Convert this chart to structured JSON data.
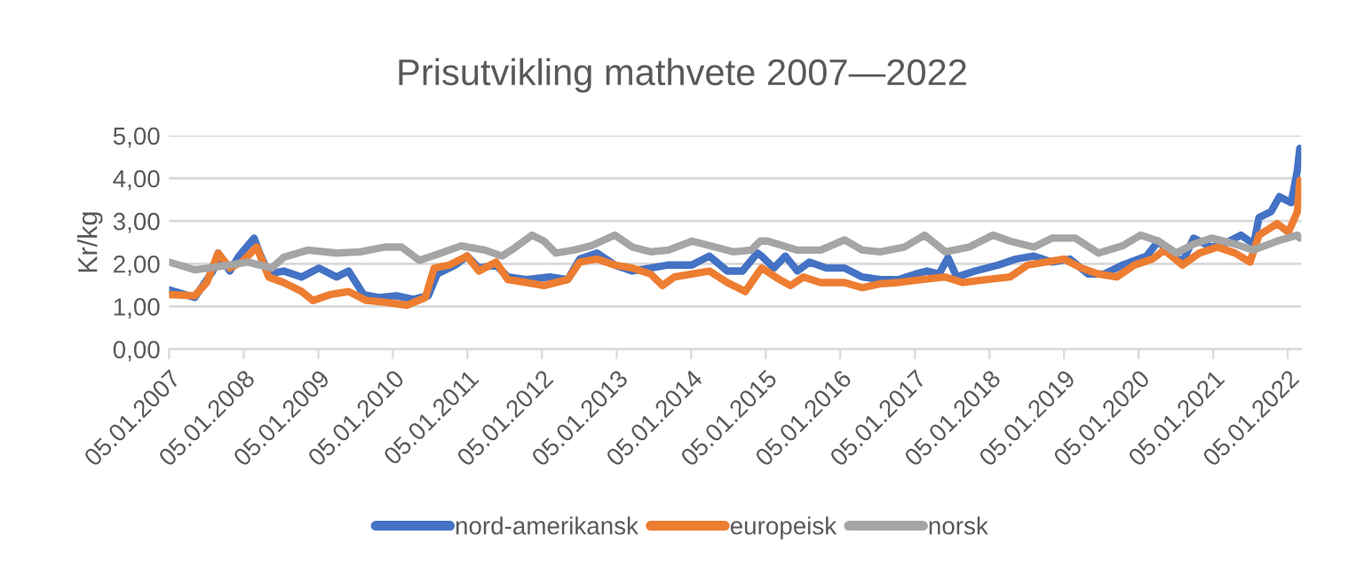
{
  "chart_data": {
    "type": "line",
    "title": "Prisutvikling mathvete 2007—2022",
    "ylabel": "Kr/kg",
    "series": [
      {
        "name": "nord-amerikansk",
        "color": "#4472c4",
        "x": [
          "2007-01-05",
          "2007-05-10",
          "2007-08-07",
          "2007-09-02",
          "2007-10-29",
          "2007-12-13",
          "2008-02-25",
          "2008-03-23",
          "2008-05-07",
          "2008-07-19",
          "2008-10-15",
          "2009-01-08",
          "2009-04-04",
          "2009-06-02",
          "2009-08-14",
          "2009-10-26",
          "2010-01-22",
          "2010-04-15",
          "2010-06-27",
          "2010-08-10",
          "2010-11-07",
          "2011-01-04",
          "2011-03-02",
          "2011-05-25",
          "2011-07-22",
          "2011-10-19",
          "2012-02-14",
          "2012-05-10",
          "2012-07-08",
          "2012-10-01",
          "2012-12-27",
          "2013-03-23",
          "2013-06-20",
          "2013-09-13",
          "2014-01-08",
          "2014-04-04",
          "2014-07-01",
          "2014-09-13",
          "2014-11-25",
          "2014-12-16",
          "2015-02-14",
          "2015-04-11",
          "2015-06-09",
          "2015-08-07",
          "2015-10-29",
          "2016-01-26",
          "2016-04-22",
          "2016-07-19",
          "2016-10-15",
          "2017-01-08",
          "2017-03-05",
          "2017-05-03",
          "2017-06-16",
          "2017-07-29",
          "2017-10-26",
          "2018-02-17",
          "2018-05-14",
          "2018-08-10",
          "2018-11-07",
          "2019-02-03",
          "2019-05-03",
          "2019-07-22",
          "2019-10-19",
          "2020-02-14",
          "2020-04-11",
          "2020-06-09",
          "2020-08-07",
          "2020-10-01",
          "2020-12-27",
          "2021-02-25",
          "2021-05-21",
          "2021-07-22",
          "2021-08-17",
          "2021-10-15",
          "2021-11-25",
          "2022-01-22",
          "2022-02-21",
          "2022-03-05"
        ],
        "values": [
          1.39,
          1.21,
          1.83,
          2.25,
          1.83,
          2.18,
          2.6,
          2.25,
          1.76,
          1.83,
          1.69,
          1.9,
          1.69,
          1.83,
          1.28,
          1.21,
          1.25,
          1.17,
          1.25,
          1.76,
          1.97,
          2.18,
          1.9,
          1.97,
          1.69,
          1.63,
          1.69,
          1.63,
          2.11,
          2.25,
          1.97,
          1.83,
          1.9,
          1.97,
          1.97,
          2.18,
          1.83,
          1.83,
          2.25,
          2.18,
          1.9,
          2.18,
          1.83,
          2.04,
          1.9,
          1.9,
          1.69,
          1.63,
          1.63,
          1.76,
          1.83,
          1.76,
          2.14,
          1.69,
          1.83,
          1.97,
          2.11,
          2.18,
          2.04,
          2.11,
          1.76,
          1.76,
          1.97,
          2.18,
          2.53,
          2.25,
          2.04,
          2.6,
          2.39,
          2.46,
          2.67,
          2.46,
          3.08,
          3.22,
          3.57,
          3.43,
          4.19,
          4.7
        ]
      },
      {
        "name": "europeisk",
        "color": "#ed7d31",
        "x": [
          "2007-01-05",
          "2007-05-10",
          "2007-07-08",
          "2007-09-02",
          "2007-10-29",
          "2007-12-27",
          "2008-03-09",
          "2008-05-07",
          "2008-07-19",
          "2008-10-15",
          "2008-12-09",
          "2009-03-05",
          "2009-06-02",
          "2009-08-28",
          "2009-11-25",
          "2010-03-16",
          "2010-06-13",
          "2010-07-26",
          "2010-10-08",
          "2011-01-04",
          "2011-03-02",
          "2011-05-25",
          "2011-07-22",
          "2011-10-19",
          "2012-01-15",
          "2012-05-10",
          "2012-07-08",
          "2012-10-01",
          "2012-12-27",
          "2013-03-23",
          "2013-06-20",
          "2013-08-17",
          "2013-10-15",
          "2014-01-08",
          "2014-04-04",
          "2014-07-01",
          "2014-09-27",
          "2014-11-25",
          "2014-12-16",
          "2015-03-13",
          "2015-05-07",
          "2015-07-08",
          "2015-10-01",
          "2016-01-26",
          "2016-04-22",
          "2016-07-19",
          "2016-10-15",
          "2017-02-07",
          "2017-06-02",
          "2017-08-28",
          "2017-12-23",
          "2018-04-15",
          "2018-07-11",
          "2018-10-08",
          "2019-01-04",
          "2019-04-01",
          "2019-06-23",
          "2019-09-20",
          "2019-12-16",
          "2020-03-13",
          "2020-05-10",
          "2020-08-07",
          "2020-10-29",
          "2021-01-26",
          "2021-04-22",
          "2021-07-04",
          "2021-08-17",
          "2021-11-14",
          "2022-01-08",
          "2022-02-21",
          "2022-03-05"
        ],
        "values": [
          1.28,
          1.25,
          1.56,
          2.25,
          1.9,
          2.04,
          2.39,
          1.69,
          1.56,
          1.35,
          1.14,
          1.28,
          1.35,
          1.14,
          1.1,
          1.03,
          1.21,
          1.9,
          1.97,
          2.18,
          1.83,
          2.04,
          1.63,
          1.56,
          1.49,
          1.63,
          2.04,
          2.11,
          1.97,
          1.9,
          1.76,
          1.49,
          1.69,
          1.76,
          1.83,
          1.56,
          1.35,
          1.76,
          1.9,
          1.63,
          1.49,
          1.69,
          1.56,
          1.56,
          1.44,
          1.53,
          1.56,
          1.63,
          1.69,
          1.56,
          1.63,
          1.69,
          1.97,
          2.04,
          2.11,
          1.9,
          1.76,
          1.69,
          1.97,
          2.11,
          2.32,
          1.97,
          2.25,
          2.39,
          2.25,
          2.04,
          2.67,
          2.94,
          2.74,
          3.22,
          3.95
        ]
      },
      {
        "name": "norsk",
        "color": "#a5a5a5",
        "x": [
          "2007-01-05",
          "2007-05-10",
          "2007-09-02",
          "2008-01-26",
          "2008-05-21",
          "2008-07-19",
          "2008-11-14",
          "2009-04-04",
          "2009-07-29",
          "2009-11-25",
          "2010-02-17",
          "2010-05-14",
          "2010-08-10",
          "2010-12-05",
          "2011-04-01",
          "2011-06-23",
          "2011-08-21",
          "2011-11-17",
          "2012-01-15",
          "2012-03-13",
          "2012-06-09",
          "2012-09-02",
          "2012-12-27",
          "2013-03-23",
          "2013-06-20",
          "2013-09-16",
          "2014-01-08",
          "2014-05-03",
          "2014-07-29",
          "2014-10-26",
          "2014-12-09",
          "2015-01-15",
          "2015-06-09",
          "2015-10-01",
          "2016-01-26",
          "2016-04-22",
          "2016-07-19",
          "2016-11-14",
          "2017-02-21",
          "2017-06-02",
          "2017-09-27",
          "2018-01-22",
          "2018-04-15",
          "2018-08-10",
          "2018-11-07",
          "2019-03-02",
          "2019-06-23",
          "2019-10-19",
          "2020-01-15",
          "2020-04-11",
          "2020-07-08",
          "2020-10-01",
          "2020-12-27",
          "2021-04-22",
          "2021-07-19",
          "2021-11-14",
          "2022-02-21",
          "2022-03-05"
        ],
        "values": [
          2.04,
          1.86,
          1.93,
          2.04,
          1.9,
          2.15,
          2.32,
          2.25,
          2.28,
          2.39,
          2.39,
          2.08,
          2.22,
          2.42,
          2.32,
          2.18,
          2.36,
          2.67,
          2.53,
          2.25,
          2.32,
          2.42,
          2.67,
          2.39,
          2.28,
          2.32,
          2.53,
          2.39,
          2.28,
          2.32,
          2.53,
          2.53,
          2.32,
          2.32,
          2.56,
          2.32,
          2.28,
          2.39,
          2.67,
          2.28,
          2.39,
          2.67,
          2.53,
          2.39,
          2.6,
          2.6,
          2.25,
          2.42,
          2.67,
          2.53,
          2.25,
          2.46,
          2.6,
          2.46,
          2.32,
          2.53,
          2.67,
          2.6
        ]
      }
    ],
    "xlim": [
      "2007-01-05",
      "2022-03-12"
    ],
    "xticks": [
      {
        "value": "2007-01-05",
        "label": "05.01.2007"
      },
      {
        "value": "2008-01-05",
        "label": "05.01.2008"
      },
      {
        "value": "2009-01-05",
        "label": "05.01.2009"
      },
      {
        "value": "2010-01-05",
        "label": "05.01.2010"
      },
      {
        "value": "2011-01-05",
        "label": "05.01.2011"
      },
      {
        "value": "2012-01-05",
        "label": "05.01.2012"
      },
      {
        "value": "2013-01-05",
        "label": "05.01.2013"
      },
      {
        "value": "2014-01-05",
        "label": "05.01.2014"
      },
      {
        "value": "2015-01-05",
        "label": "05.01.2015"
      },
      {
        "value": "2016-01-05",
        "label": "05.01.2016"
      },
      {
        "value": "2017-01-05",
        "label": "05.01.2017"
      },
      {
        "value": "2018-01-05",
        "label": "05.01.2018"
      },
      {
        "value": "2019-01-05",
        "label": "05.01.2019"
      },
      {
        "value": "2020-01-05",
        "label": "05.01.2020"
      },
      {
        "value": "2021-01-05",
        "label": "05.01.2021"
      },
      {
        "value": "2022-01-05",
        "label": "05.01.2022"
      }
    ],
    "ylim": [
      0,
      5
    ],
    "yticks": [
      {
        "value": 0,
        "label": "0,00"
      },
      {
        "value": 1,
        "label": "1,00"
      },
      {
        "value": 2,
        "label": "2,00"
      },
      {
        "value": 3,
        "label": "3,00"
      },
      {
        "value": 4,
        "label": "4,00"
      },
      {
        "value": 5,
        "label": "5,00"
      }
    ],
    "grid": "y",
    "legend": "bottom",
    "marker": "none",
    "line_style": "solid"
  }
}
